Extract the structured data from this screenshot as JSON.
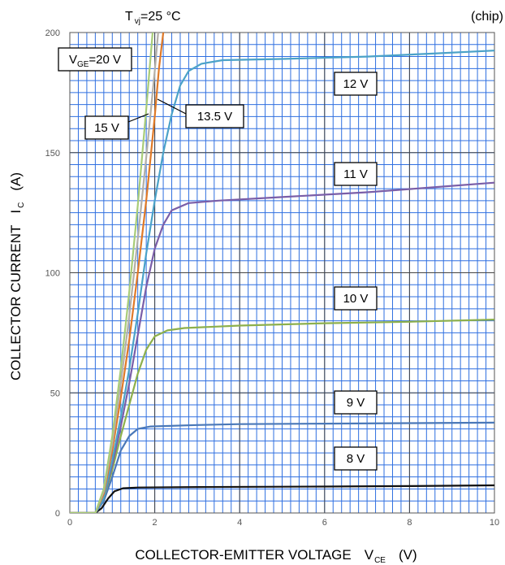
{
  "chart_data": {
    "type": "line",
    "title_left": "T",
    "title_left_sub": "vj",
    "title_left_rest": "=25 °C",
    "title_right": "(chip)",
    "xlabel": "COLLECTOR-EMITTER VOLTAGE",
    "xlabel_symbol": "V",
    "xlabel_symbol_sub": "CE",
    "xlabel_unit": "(V)",
    "ylabel": "COLLECTOR CURRENT",
    "ylabel_symbol": "I",
    "ylabel_symbol_sub": "C",
    "ylabel_unit": "(A)",
    "xlim": [
      0,
      10
    ],
    "ylim": [
      0,
      200
    ],
    "x_major_ticks": [
      0,
      2,
      4,
      6,
      8,
      10
    ],
    "y_major_ticks": [
      0,
      50,
      100,
      150,
      200
    ],
    "x_minor_step": 0.2,
    "y_minor_step": 5,
    "grid": true,
    "colors": {
      "grid_minor": "#2f6fe0",
      "grid_major": "#444444",
      "frame": "#555555",
      "background": "#ffffff"
    },
    "series": [
      {
        "name": "8 V",
        "color": "#111111",
        "points": [
          [
            0,
            0
          ],
          [
            0.6,
            0
          ],
          [
            0.75,
            2
          ],
          [
            0.9,
            6
          ],
          [
            1.05,
            9
          ],
          [
            1.25,
            10.3
          ],
          [
            1.6,
            10.6
          ],
          [
            3,
            10.8
          ],
          [
            6,
            11
          ],
          [
            8,
            11.2
          ],
          [
            10,
            11.5
          ]
        ]
      },
      {
        "name": "9 V",
        "color": "#4a78b8",
        "points": [
          [
            0,
            0
          ],
          [
            0.6,
            0
          ],
          [
            0.8,
            5
          ],
          [
            1.0,
            15
          ],
          [
            1.2,
            26
          ],
          [
            1.4,
            32
          ],
          [
            1.6,
            35
          ],
          [
            1.9,
            36
          ],
          [
            3,
            36.6
          ],
          [
            4,
            37
          ],
          [
            6,
            37.2
          ],
          [
            8,
            37.4
          ],
          [
            10,
            37.6
          ]
        ]
      },
      {
        "name": "10 V",
        "color": "#8db04c",
        "points": [
          [
            0,
            0
          ],
          [
            0.6,
            0
          ],
          [
            0.8,
            6
          ],
          [
            1.0,
            18
          ],
          [
            1.2,
            32
          ],
          [
            1.4,
            45
          ],
          [
            1.6,
            58
          ],
          [
            1.8,
            68
          ],
          [
            2.0,
            73.5
          ],
          [
            2.3,
            76
          ],
          [
            2.7,
            77
          ],
          [
            4,
            78
          ],
          [
            6,
            79
          ],
          [
            8,
            79.6
          ],
          [
            10,
            80.5
          ]
        ]
      },
      {
        "name": "11 V",
        "color": "#7a5ea8",
        "points": [
          [
            0,
            0
          ],
          [
            0.6,
            0
          ],
          [
            0.8,
            6
          ],
          [
            1.0,
            20
          ],
          [
            1.2,
            36
          ],
          [
            1.4,
            54
          ],
          [
            1.6,
            74
          ],
          [
            1.8,
            94
          ],
          [
            2.0,
            110
          ],
          [
            2.2,
            120
          ],
          [
            2.4,
            126
          ],
          [
            2.8,
            129
          ],
          [
            3.5,
            130
          ],
          [
            5,
            131.5
          ],
          [
            7,
            133.5
          ],
          [
            8.5,
            135.5
          ],
          [
            10,
            137.5
          ]
        ]
      },
      {
        "name": "12 V",
        "color": "#4ba2c8",
        "points": [
          [
            0,
            0
          ],
          [
            0.6,
            0
          ],
          [
            0.8,
            6
          ],
          [
            1.0,
            22
          ],
          [
            1.2,
            40
          ],
          [
            1.4,
            60
          ],
          [
            1.6,
            83
          ],
          [
            1.8,
            108
          ],
          [
            2.0,
            130
          ],
          [
            2.2,
            150
          ],
          [
            2.4,
            166
          ],
          [
            2.6,
            178
          ],
          [
            2.8,
            184
          ],
          [
            3.1,
            187
          ],
          [
            3.6,
            188.5
          ],
          [
            5,
            189
          ],
          [
            7,
            190
          ],
          [
            8.5,
            191.2
          ],
          [
            10,
            192.5
          ]
        ]
      },
      {
        "name": "13.5 V",
        "color": "#e07a28",
        "points": [
          [
            0,
            0
          ],
          [
            0.6,
            0
          ],
          [
            0.8,
            8
          ],
          [
            1.0,
            26
          ],
          [
            1.2,
            48
          ],
          [
            1.4,
            72
          ],
          [
            1.6,
            100
          ],
          [
            1.8,
            130
          ],
          [
            2.0,
            165
          ],
          [
            2.1,
            185
          ],
          [
            2.2,
            200
          ]
        ]
      },
      {
        "name": "15 V",
        "color": "#b4b0a8",
        "points": [
          [
            0,
            0
          ],
          [
            0.6,
            0
          ],
          [
            0.8,
            9
          ],
          [
            1.0,
            29
          ],
          [
            1.2,
            54
          ],
          [
            1.4,
            82
          ],
          [
            1.6,
            114
          ],
          [
            1.8,
            148
          ],
          [
            2.0,
            184
          ],
          [
            2.08,
            200
          ]
        ]
      },
      {
        "name": "V_GE=20 V",
        "color": "#a8cc78",
        "points": [
          [
            0,
            0
          ],
          [
            0.6,
            0
          ],
          [
            0.8,
            10
          ],
          [
            1.0,
            32
          ],
          [
            1.2,
            60
          ],
          [
            1.4,
            92
          ],
          [
            1.6,
            128
          ],
          [
            1.8,
            168
          ],
          [
            1.95,
            200
          ]
        ]
      }
    ],
    "annotations": [
      {
        "text": "12 V",
        "series": "12 V"
      },
      {
        "text": "11 V",
        "series": "11 V"
      },
      {
        "text": "10 V",
        "series": "10 V"
      },
      {
        "text": "9 V",
        "series": "9 V"
      },
      {
        "text": "8 V",
        "series": "8 V"
      },
      {
        "text": "13.5 V",
        "series": "13.5 V"
      },
      {
        "text": "15 V",
        "series": "15 V"
      },
      {
        "text": "V",
        "sub": "GE",
        "rest": "=20 V",
        "series": "V_GE=20 V"
      }
    ]
  }
}
